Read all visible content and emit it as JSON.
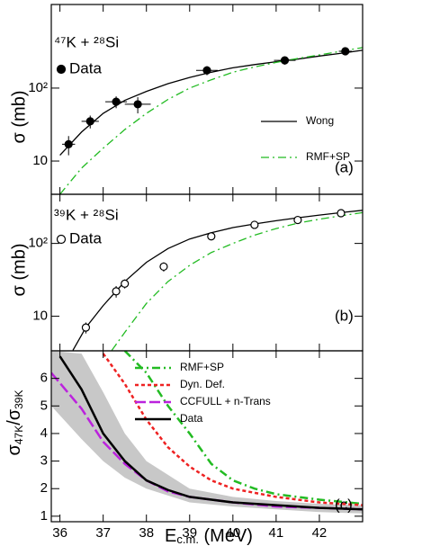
{
  "chart_data": [
    {
      "type": "line",
      "reaction": "⁴⁷K + ²⁸Si",
      "panel_label": "(a)",
      "ylabel": "σ (mb)",
      "log_y": true,
      "xlim": [
        35.8,
        43.0
      ],
      "xticks": [
        36,
        37,
        38,
        39,
        40,
        41,
        42
      ],
      "ylim": [
        3.5,
        1400
      ],
      "yticks": [
        10,
        {
          "value": 100,
          "label": "10²"
        }
      ],
      "points": {
        "name": "Data",
        "marker": "filled",
        "color": "#000000",
        "x": [
          36.2,
          36.7,
          37.3,
          37.8,
          39.4,
          41.2,
          42.6
        ],
        "y": [
          17,
          35,
          65,
          60,
          175,
          240,
          320
        ],
        "xerr": [
          0.15,
          0.2,
          0.25,
          0.3,
          0.25,
          0.25,
          0.15
        ],
        "yerr": [
          5,
          7,
          12,
          15,
          25,
          30,
          25
        ]
      },
      "series": [
        {
          "name": "Wong",
          "color": "#000000",
          "dash": "solid",
          "x": [
            36.0,
            36.5,
            37.0,
            37.5,
            38.0,
            38.5,
            39.0,
            39.5,
            40.0,
            40.5,
            41.0,
            41.5,
            42.0,
            42.5,
            43.0
          ],
          "y": [
            12,
            25,
            45,
            68,
            90,
            115,
            140,
            165,
            190,
            210,
            230,
            250,
            275,
            300,
            330
          ]
        },
        {
          "name": "RMF+SP",
          "color": "#22bb22",
          "dash": "dashdot",
          "x": [
            36.0,
            36.5,
            37.0,
            37.5,
            38.0,
            38.5,
            39.0,
            39.5,
            40.0,
            40.5,
            41.0,
            41.5,
            42.0,
            42.5,
            43.0
          ],
          "y": [
            3.5,
            8,
            15,
            27,
            45,
            70,
            100,
            130,
            165,
            195,
            225,
            255,
            285,
            320,
            360
          ]
        }
      ]
    },
    {
      "type": "line",
      "reaction": "³⁹K + ²⁸Si",
      "panel_label": "(b)",
      "ylabel": "σ (mb)",
      "log_y": true,
      "xlim": [
        35.8,
        43.0
      ],
      "xticks": [
        36,
        37,
        38,
        39,
        40,
        41,
        42
      ],
      "ylim": [
        3.35,
        473
      ],
      "yticks": [
        10,
        {
          "value": 100,
          "label": "10²"
        }
      ],
      "points": {
        "name": "Data",
        "marker": "open",
        "color": "#000000",
        "x": [
          36.6,
          37.3,
          37.5,
          38.4,
          39.5,
          40.5,
          41.5,
          42.5
        ],
        "y": [
          7,
          22,
          28,
          48,
          125,
          180,
          210,
          260
        ],
        "yerr": [
          1.2,
          4,
          4,
          7,
          10,
          10,
          10,
          15
        ]
      },
      "series": [
        {
          "name": "Wong",
          "color": "#000000",
          "dash": "solid",
          "x": [
            36.3,
            36.6,
            37.0,
            37.5,
            38.0,
            38.5,
            39.0,
            39.5,
            40.0,
            40.5,
            41.0,
            41.5,
            42.0,
            42.5,
            43.0
          ],
          "y": [
            3.4,
            7,
            14,
            30,
            55,
            85,
            115,
            140,
            165,
            185,
            205,
            225,
            245,
            265,
            285
          ]
        },
        {
          "name": "RMF+SP",
          "color": "#22bb22",
          "dash": "dashdot",
          "x": [
            37.2,
            37.5,
            38.0,
            38.5,
            39.0,
            39.5,
            40.0,
            40.5,
            41.0,
            41.5,
            42.0,
            42.5,
            43.0
          ],
          "y": [
            3.4,
            6,
            15,
            30,
            50,
            75,
            100,
            130,
            160,
            190,
            215,
            240,
            265
          ]
        }
      ]
    },
    {
      "type": "line",
      "panel_label": "(c)",
      "ylabel": [
        "σ",
        "47K",
        "/σ",
        "39K"
      ],
      "xlabel": [
        "E",
        "c.m.",
        " (MeV)"
      ],
      "log_y": false,
      "xlim": [
        35.8,
        43.0
      ],
      "xticks": [
        36,
        37,
        38,
        39,
        40,
        41,
        42
      ],
      "ylim": [
        0.8,
        7.0
      ],
      "yticks": [
        1,
        2,
        3,
        4,
        5,
        6
      ],
      "band": {
        "color": "#c8c8c8",
        "x": [
          35.8,
          36.5,
          37.0,
          37.5,
          38.0,
          39.0,
          40.0,
          41.0,
          42.0,
          43.0
        ],
        "upper": [
          7.0,
          6.9,
          5.5,
          4.0,
          3.0,
          2.0,
          1.7,
          1.55,
          1.45,
          1.4
        ],
        "lower": [
          5.0,
          3.8,
          3.0,
          2.4,
          2.0,
          1.5,
          1.35,
          1.25,
          1.15,
          1.1
        ]
      },
      "series": [
        {
          "name": "RMF+SP",
          "color": "#22bb22",
          "dash": "dashdot",
          "x": [
            37.5,
            38.0,
            38.5,
            39.0,
            39.5,
            40.0,
            40.5,
            41.0,
            42.0,
            43.0
          ],
          "y": [
            7.0,
            6.2,
            5.0,
            4.0,
            2.9,
            2.3,
            2.0,
            1.8,
            1.6,
            1.45
          ]
        },
        {
          "name": "Dyn. Def.",
          "color": "#ee2222",
          "dash": "dashed",
          "x": [
            37.0,
            37.5,
            38.0,
            38.5,
            39.0,
            39.5,
            40.0,
            41.0,
            42.0,
            43.0
          ],
          "y": [
            6.9,
            5.8,
            4.5,
            3.5,
            2.8,
            2.3,
            2.0,
            1.7,
            1.5,
            1.4
          ]
        },
        {
          "name": "CCFULL + n-Trans",
          "color": "#bb22dd",
          "dash": "longdash",
          "x": [
            35.8,
            36.5,
            37.0,
            37.5,
            38.0,
            38.5,
            39.0,
            40.0,
            41.0,
            42.0,
            43.0
          ],
          "y": [
            6.2,
            4.9,
            3.7,
            2.9,
            2.3,
            1.9,
            1.7,
            1.5,
            1.35,
            1.3,
            1.25
          ]
        },
        {
          "name": "Data",
          "color": "#000000",
          "dash": "solid",
          "x": [
            36.0,
            36.5,
            37.0,
            37.5,
            38.0,
            38.5,
            39.0,
            40.0,
            41.0,
            42.0,
            43.0
          ],
          "y": [
            6.8,
            5.6,
            4.0,
            3.0,
            2.3,
            1.95,
            1.7,
            1.5,
            1.4,
            1.3,
            1.25
          ]
        }
      ]
    }
  ]
}
